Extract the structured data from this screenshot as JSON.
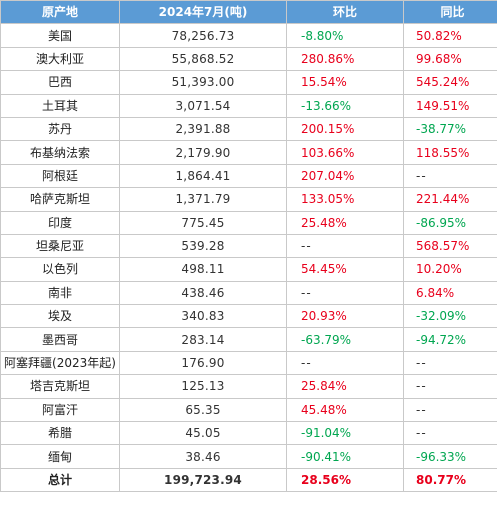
{
  "header": {
    "origin": "原产地",
    "volume": "2024年7月(吨)",
    "mom": "环比",
    "yoy": "同比"
  },
  "rows": [
    {
      "country": "美国",
      "volume": "78,256.73",
      "mom": "-8.80%",
      "yoy": "50.82%"
    },
    {
      "country": "澳大利亚",
      "volume": "55,868.52",
      "mom": "280.86%",
      "yoy": "99.68%"
    },
    {
      "country": "巴西",
      "volume": "51,393.00",
      "mom": "15.54%",
      "yoy": "545.24%"
    },
    {
      "country": "土耳其",
      "volume": "3,071.54",
      "mom": "-13.66%",
      "yoy": "149.51%"
    },
    {
      "country": "苏丹",
      "volume": "2,391.88",
      "mom": "200.15%",
      "yoy": "-38.77%"
    },
    {
      "country": "布基纳法索",
      "volume": "2,179.90",
      "mom": "103.66%",
      "yoy": "118.55%"
    },
    {
      "country": "阿根廷",
      "volume": "1,864.41",
      "mom": "207.04%",
      "yoy": "--"
    },
    {
      "country": "哈萨克斯坦",
      "volume": "1,371.79",
      "mom": "133.05%",
      "yoy": "221.44%"
    },
    {
      "country": "印度",
      "volume": "775.45",
      "mom": "25.48%",
      "yoy": "-86.95%"
    },
    {
      "country": "坦桑尼亚",
      "volume": "539.28",
      "mom": "--",
      "yoy": "568.57%"
    },
    {
      "country": "以色列",
      "volume": "498.11",
      "mom": "54.45%",
      "yoy": "10.20%"
    },
    {
      "country": "南非",
      "volume": "438.46",
      "mom": "--",
      "yoy": "6.84%"
    },
    {
      "country": "埃及",
      "volume": "340.83",
      "mom": "20.93%",
      "yoy": "-32.09%"
    },
    {
      "country": "墨西哥",
      "volume": "283.14",
      "mom": "-63.79%",
      "yoy": "-94.72%"
    },
    {
      "country": "阿塞拜疆(2023年起)",
      "volume": "176.90",
      "mom": "--",
      "yoy": "--"
    },
    {
      "country": "塔吉克斯坦",
      "volume": "125.13",
      "mom": "25.84%",
      "yoy": "--"
    },
    {
      "country": "阿富汗",
      "volume": "65.35",
      "mom": "45.48%",
      "yoy": "--"
    },
    {
      "country": "希腊",
      "volume": "45.05",
      "mom": "-91.04%",
      "yoy": "--"
    },
    {
      "country": "缅甸",
      "volume": "38.46",
      "mom": "-90.41%",
      "yoy": "-96.33%"
    }
  ],
  "total": {
    "country": "总计",
    "volume": "199,723.94",
    "mom": "28.56%",
    "yoy": "80.77%"
  },
  "colors": {
    "header_bg": "#5b9bd5",
    "increase": "#e8001c",
    "decrease": "#00a650",
    "grid": "#c9c9c9"
  }
}
